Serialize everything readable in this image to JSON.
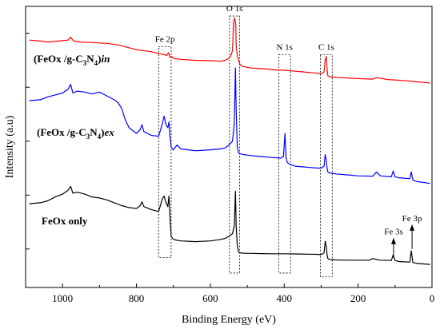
{
  "chart_data": {
    "type": "line",
    "xlabel": "Binding Energy (eV)",
    "ylabel": "Intensity (a.u)",
    "xlim": [
      1100,
      0
    ],
    "x_reversed": true,
    "xticks": [
      1000,
      800,
      600,
      400,
      200,
      0
    ],
    "y_tick_labels_shown": false,
    "legend": "none",
    "series": [
      {
        "label_parts": [
          "(FeOx /g-C",
          "3",
          "N",
          "4",
          ")",
          "in"
        ],
        "color": "#ff0000",
        "x": [
          1090,
          1060,
          1040,
          1020,
          1000,
          985,
          978,
          970,
          950,
          920,
          900,
          880,
          850,
          820,
          800,
          780,
          760,
          740,
          725,
          718,
          713,
          709,
          705,
          700,
          680,
          660,
          640,
          600,
          570,
          560,
          550,
          545,
          540,
          537,
          534,
          531,
          530,
          528,
          525,
          520,
          515,
          505,
          490,
          470,
          450,
          420,
          400,
          380,
          350,
          320,
          300,
          292,
          289,
          286,
          284,
          282,
          278,
          270,
          250,
          220,
          200,
          160,
          150,
          120,
          100,
          80,
          60,
          50,
          40,
          20,
          5
        ],
        "y": [
          11.85,
          11.8,
          11.75,
          11.78,
          11.82,
          11.85,
          12.0,
          11.8,
          11.75,
          11.72,
          11.7,
          11.68,
          11.6,
          11.45,
          11.35,
          11.3,
          11.25,
          11.15,
          11.1,
          11.05,
          11.2,
          10.95,
          11.0,
          10.9,
          10.85,
          10.82,
          10.8,
          10.78,
          10.75,
          10.8,
          10.9,
          11.0,
          11.3,
          12.8,
          13.0,
          12.6,
          11.6,
          11.2,
          10.9,
          10.6,
          10.5,
          10.45,
          10.4,
          10.38,
          10.35,
          10.3,
          10.28,
          10.25,
          10.2,
          10.15,
          10.1,
          10.2,
          10.8,
          11.0,
          10.4,
          10.0,
          9.95,
          9.93,
          9.9,
          9.87,
          9.85,
          9.82,
          9.9,
          9.8,
          9.78,
          9.75,
          9.72,
          9.7,
          9.68,
          9.65,
          9.62
        ]
      },
      {
        "label_parts": [
          "(FeOx /g-C",
          "3",
          "N",
          "4",
          ")",
          "ex"
        ],
        "color": "#0000ff",
        "x": [
          1090,
          1060,
          1040,
          1020,
          1000,
          985,
          978,
          972,
          960,
          940,
          920,
          900,
          880,
          860,
          850,
          840,
          830,
          820,
          800,
          790,
          785,
          780,
          760,
          740,
          730,
          725,
          720,
          715,
          712,
          709,
          706,
          700,
          690,
          680,
          660,
          640,
          600,
          570,
          560,
          550,
          540,
          535,
          532,
          530,
          527,
          524,
          520,
          510,
          490,
          460,
          430,
          410,
          402,
          398,
          395,
          392,
          385,
          370,
          340,
          310,
          300,
          292,
          289,
          286,
          284,
          282,
          278,
          260,
          230,
          200,
          160,
          150,
          140,
          110,
          105,
          100,
          90,
          75,
          60,
          56,
          52,
          48,
          40,
          20,
          5
        ],
        "y": [
          8.7,
          8.75,
          8.9,
          9.0,
          9.1,
          9.3,
          9.55,
          9.1,
          9.2,
          9.15,
          9.05,
          9.15,
          8.95,
          8.75,
          8.6,
          8.3,
          7.7,
          7.3,
          7.0,
          7.2,
          7.45,
          7.1,
          6.9,
          6.85,
          7.5,
          7.9,
          7.45,
          7.3,
          7.6,
          6.8,
          6.3,
          6.15,
          6.4,
          6.2,
          6.15,
          6.1,
          6.15,
          6.2,
          6.25,
          6.4,
          6.6,
          7.5,
          10.4,
          8.3,
          6.3,
          6.0,
          5.95,
          5.9,
          5.85,
          5.8,
          5.75,
          5.72,
          5.8,
          7.0,
          5.75,
          5.5,
          5.4,
          5.3,
          5.25,
          5.2,
          5.2,
          5.3,
          5.9,
          5.6,
          5.2,
          5.0,
          4.95,
          4.9,
          4.85,
          4.8,
          4.78,
          5.0,
          4.8,
          4.75,
          5.05,
          4.75,
          4.7,
          4.68,
          4.65,
          5.0,
          4.6,
          4.55,
          4.5,
          4.45,
          4.4
        ]
      },
      {
        "label_parts": [
          "FeOx only"
        ],
        "color": "#000000",
        "x": [
          1090,
          1060,
          1040,
          1020,
          1000,
          985,
          978,
          972,
          960,
          940,
          920,
          900,
          880,
          860,
          840,
          820,
          800,
          790,
          785,
          780,
          760,
          740,
          730,
          725,
          720,
          715,
          712,
          709,
          706,
          700,
          690,
          680,
          660,
          640,
          600,
          570,
          560,
          550,
          540,
          535,
          532,
          530,
          527,
          524,
          520,
          510,
          490,
          460,
          430,
          400,
          370,
          340,
          310,
          300,
          292,
          289,
          286,
          284,
          282,
          278,
          260,
          230,
          200,
          170,
          160,
          150,
          140,
          110,
          105,
          100,
          90,
          75,
          60,
          56,
          52,
          48,
          40,
          20,
          5
        ],
        "y": [
          3.35,
          3.4,
          3.5,
          3.7,
          3.85,
          4.05,
          4.25,
          3.9,
          3.95,
          3.85,
          3.7,
          3.65,
          3.55,
          3.4,
          3.25,
          3.15,
          3.1,
          3.25,
          3.45,
          3.2,
          3.05,
          2.95,
          3.6,
          3.75,
          3.4,
          3.2,
          3.75,
          2.6,
          1.65,
          1.5,
          1.45,
          1.42,
          1.4,
          1.38,
          1.42,
          1.5,
          1.55,
          1.65,
          1.8,
          2.2,
          4.0,
          2.2,
          1.2,
          0.85,
          0.8,
          0.78,
          0.77,
          0.76,
          0.75,
          0.75,
          0.74,
          0.73,
          0.72,
          0.7,
          0.8,
          1.4,
          1.15,
          0.7,
          0.5,
          0.45,
          0.43,
          0.42,
          0.42,
          0.42,
          0.5,
          0.45,
          0.42,
          0.4,
          0.7,
          0.4,
          0.35,
          0.33,
          0.32,
          0.9,
          0.3,
          0.28,
          0.25,
          0.22,
          0.2
        ]
      }
    ],
    "peak_annotations": [
      {
        "label": "Fe 2p",
        "x_from": 740,
        "x_to": 706,
        "y_from": 0.55,
        "y_to": 11.5
      },
      {
        "label": "O 1s",
        "x_from": 548,
        "x_to": 521,
        "y_from": -0.25,
        "y_to": 13.1
      },
      {
        "label": "N 1s",
        "x_from": 415,
        "x_to": 383,
        "y_from": -0.25,
        "y_to": 11.1
      },
      {
        "label": "C 1s",
        "x_from": 302,
        "x_to": 270,
        "y_from": -0.45,
        "y_to": 11.1
      }
    ],
    "arrow_annotations": [
      {
        "label": "Fe 3s",
        "x": 104,
        "y_from": 0.55,
        "y_to": 1.5
      },
      {
        "label": "Fe 3p",
        "x": 54,
        "y_from": 1.0,
        "y_to": 2.2
      }
    ]
  }
}
